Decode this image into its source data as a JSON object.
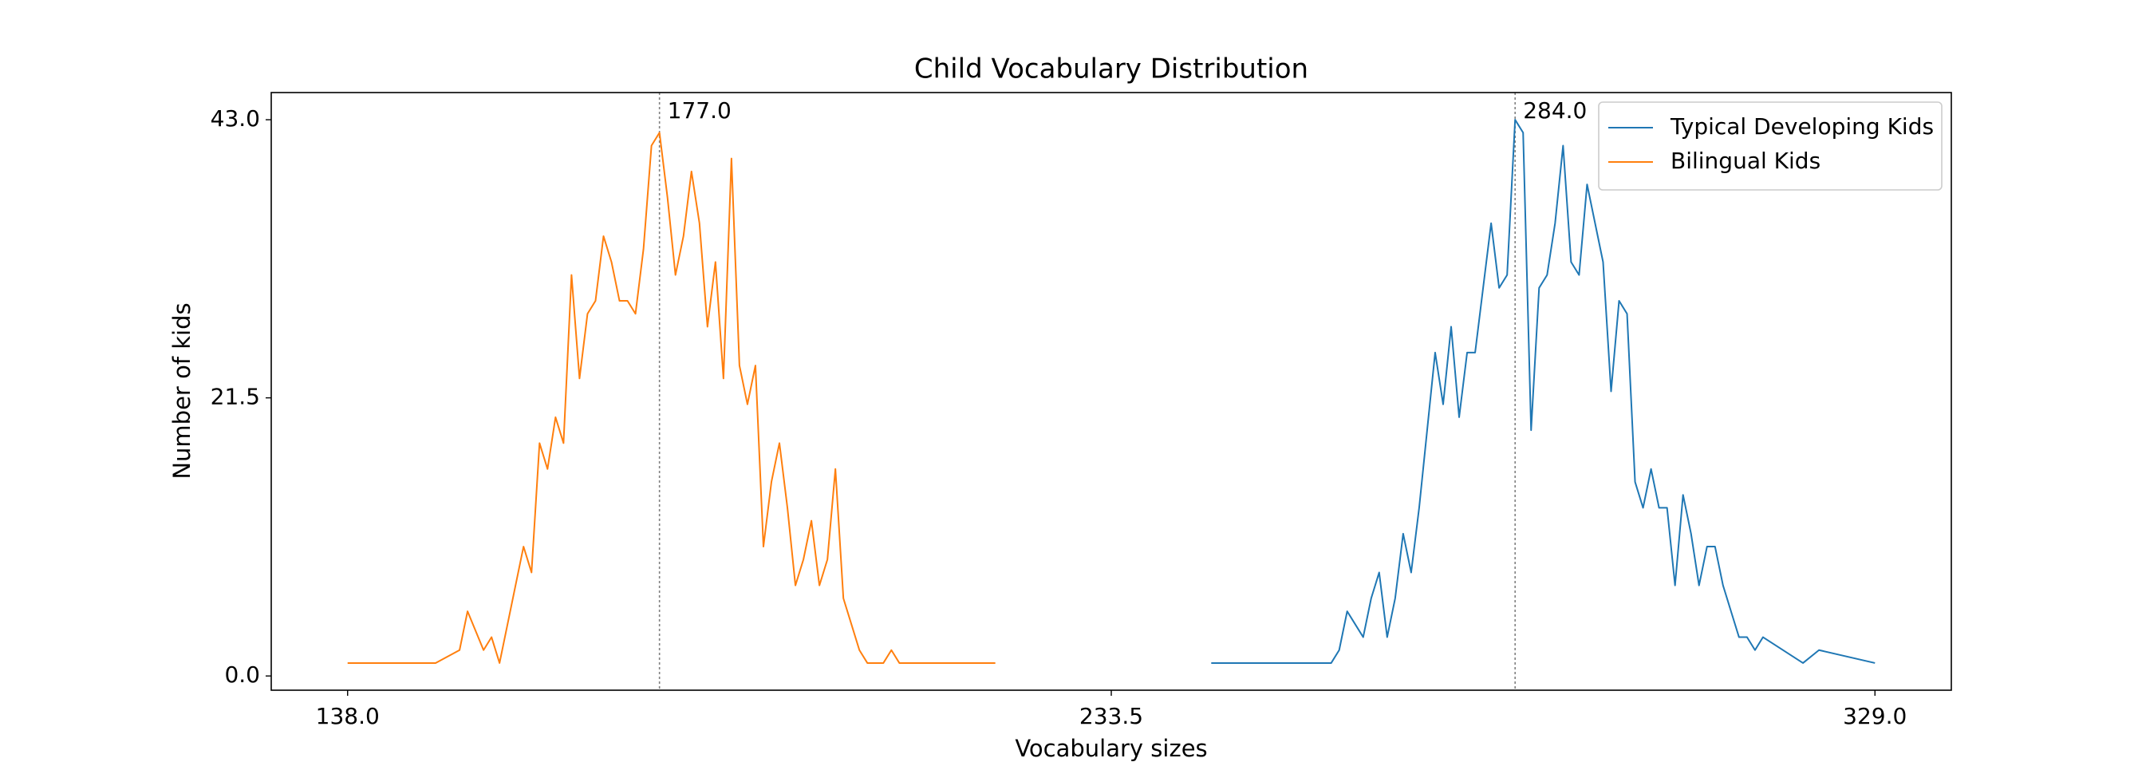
{
  "chart_data": {
    "type": "line",
    "title": "Child Vocabulary Distribution",
    "x_label": "Vocabulary sizes",
    "y_label": "Number of kids",
    "xlim": [
      128.45,
      338.55
    ],
    "ylim": [
      -1.1,
      45.1
    ],
    "xticks": [
      {
        "value": 138,
        "label": "138.0"
      },
      {
        "value": 233.5,
        "label": "233.5"
      },
      {
        "value": 329,
        "label": "329.0"
      }
    ],
    "yticks": [
      {
        "value": 0,
        "label": "0.0"
      },
      {
        "value": 21.5,
        "label": "21.5"
      },
      {
        "value": 43,
        "label": "43.0"
      }
    ],
    "legend": "upper right",
    "vlines": [
      {
        "value": 177,
        "label": "177.0"
      },
      {
        "value": 284,
        "label": "284.0"
      }
    ],
    "series": [
      {
        "name": "Typical Developing Kids",
        "color": "#1f77b4",
        "x": [
          246,
          261,
          262,
          263,
          264,
          265,
          266,
          267,
          268,
          269,
          270,
          271,
          272,
          273,
          274,
          275,
          276,
          277,
          278,
          279,
          280,
          281,
          282,
          283,
          284,
          285,
          286,
          287,
          288,
          289,
          290,
          291,
          292,
          293,
          294,
          295,
          296,
          297,
          298,
          299,
          300,
          301,
          302,
          303,
          304,
          305,
          306,
          307,
          308,
          309,
          310,
          311,
          312,
          313,
          314,
          315,
          320,
          322,
          329
        ],
        "values": [
          1,
          1,
          2,
          5,
          4,
          3,
          6,
          8,
          3,
          6,
          11,
          8,
          13,
          19,
          25,
          21,
          27,
          20,
          25,
          25,
          30,
          35,
          30,
          31,
          43,
          42,
          19,
          30,
          31,
          35,
          41,
          32,
          31,
          38,
          35,
          32,
          22,
          29,
          28,
          15,
          13,
          16,
          13,
          13,
          7,
          14,
          11,
          7,
          10,
          10,
          7,
          5,
          3,
          3,
          2,
          3,
          1,
          2,
          1
        ]
      },
      {
        "name": "Bilingual Kids",
        "color": "#ff7f0e",
        "x": [
          138,
          149,
          152,
          153,
          155,
          156,
          157,
          160,
          161,
          162,
          163,
          164,
          165,
          166,
          167,
          168,
          169,
          170,
          171,
          172,
          173,
          174,
          175,
          176,
          177,
          178,
          179,
          180,
          181,
          182,
          183,
          184,
          185,
          186,
          187,
          188,
          189,
          190,
          191,
          192,
          193,
          194,
          195,
          196,
          197,
          198,
          199,
          200,
          201,
          202,
          203,
          204,
          205,
          206,
          207,
          208,
          219
        ],
        "values": [
          1,
          1,
          2,
          5,
          2,
          3,
          1,
          10,
          8,
          18,
          16,
          20,
          18,
          31,
          23,
          28,
          29,
          34,
          32,
          29,
          29,
          28,
          33,
          41,
          42,
          37,
          31,
          34,
          39,
          35,
          27,
          32,
          23,
          40,
          24,
          21,
          24,
          10,
          15,
          18,
          13,
          7,
          9,
          12,
          7,
          9,
          16,
          6,
          4,
          2,
          1,
          1,
          1,
          2,
          1,
          1,
          1
        ]
      }
    ]
  }
}
